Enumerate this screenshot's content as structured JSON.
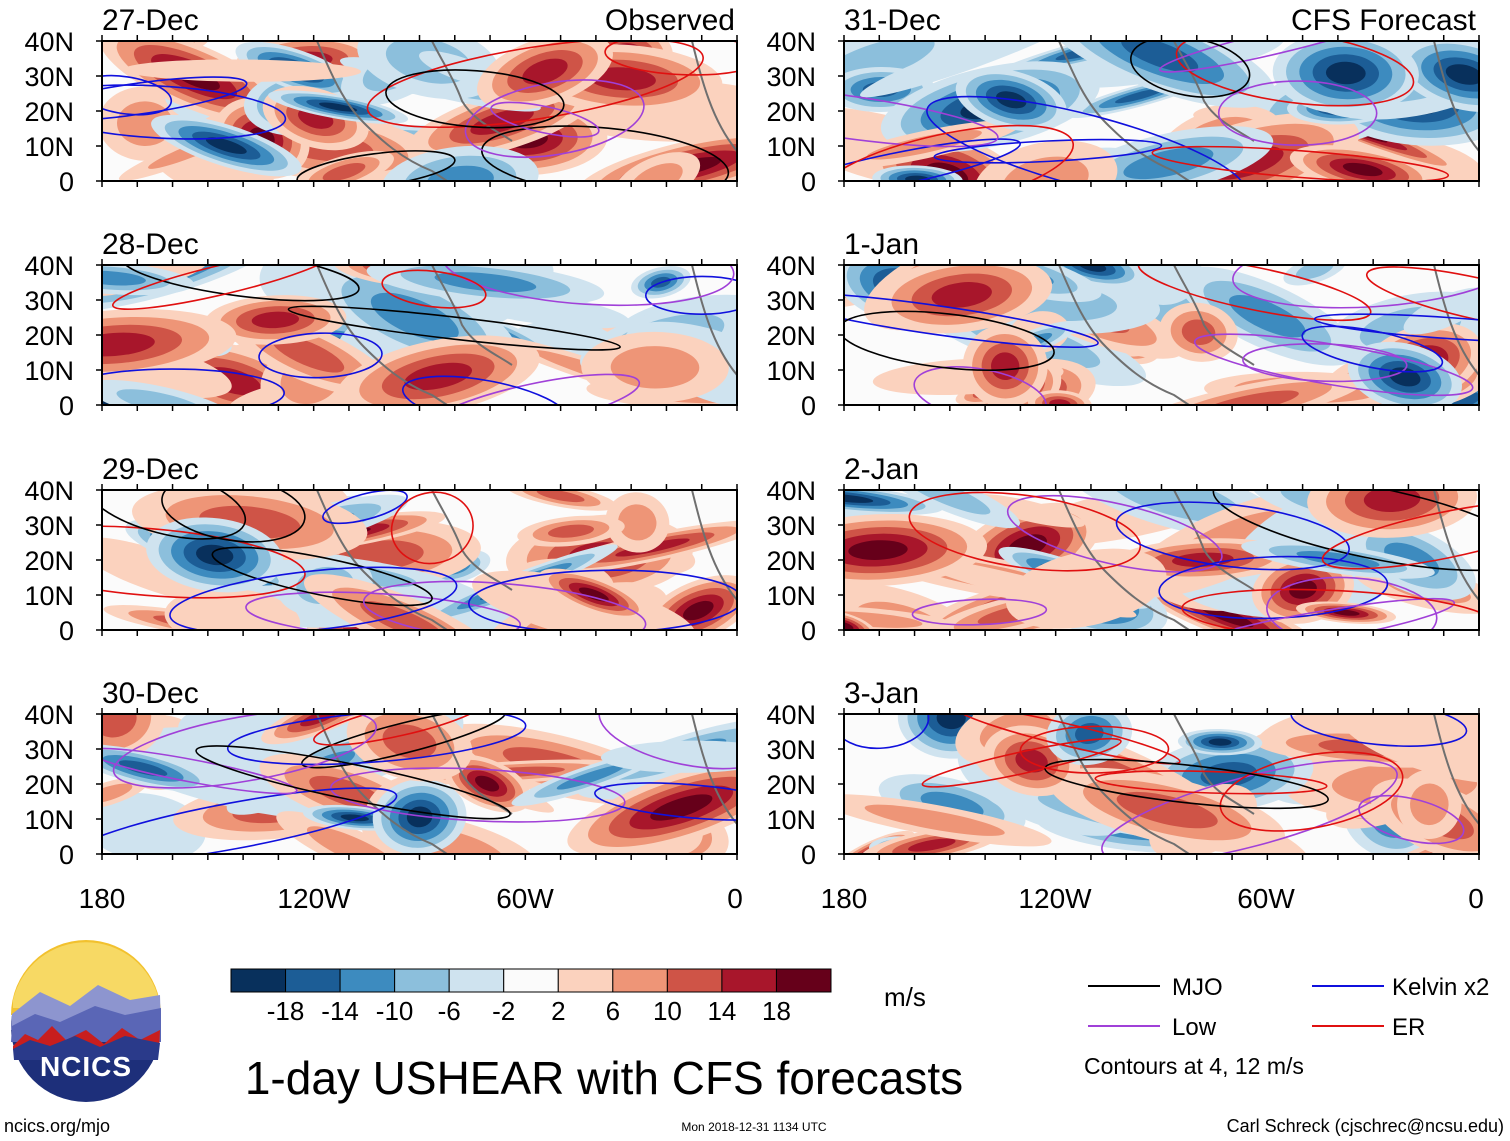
{
  "title": "1-day USHEAR with CFS forecasts",
  "columns": {
    "left_label": "Observed",
    "right_label": "CFS Forecast"
  },
  "chart_data": {
    "type": "heatmap",
    "variable": "USHEAR",
    "units": "m/s",
    "panels_observed": [
      "27-Dec",
      "28-Dec",
      "29-Dec",
      "30-Dec"
    ],
    "panels_forecast": [
      "31-Dec",
      "1-Jan",
      "2-Jan",
      "3-Jan"
    ],
    "x_ticks": [
      "180",
      "120W",
      "60W",
      "0"
    ],
    "y_ticks": [
      "0",
      "10N",
      "20N",
      "30N",
      "40N"
    ],
    "xlim_deg_east": [
      -180,
      0
    ],
    "ylim_deg_north": [
      0,
      40
    ],
    "colorbar": {
      "ticks": [
        "-18",
        "-14",
        "-10",
        "-6",
        "-2",
        "2",
        "6",
        "10",
        "14",
        "18"
      ],
      "colors": [
        "#08305c",
        "#1c5d96",
        "#3d8bbf",
        "#8cbfdc",
        "#cfe3ef",
        "#fbfbfb",
        "#fbd2be",
        "#ee9577",
        "#cf5447",
        "#a8162b",
        "#66001a"
      ]
    },
    "legend": [
      {
        "label": "MJO",
        "color": "#000000"
      },
      {
        "label": "Kelvin x2",
        "color": "#1010dd"
      },
      {
        "label": "Low",
        "color": "#a040d8"
      },
      {
        "label": "ER",
        "color": "#e01010"
      }
    ],
    "contour_note": "Contours at 4, 12 m/s"
  },
  "logo": {
    "text": "NCICS"
  },
  "footer": {
    "url": "ncics.org/mjo",
    "timestamp": "Mon 2018-12-31 1134 UTC",
    "credit": "Carl Schreck (cjschrec@ncsu.edu)"
  }
}
